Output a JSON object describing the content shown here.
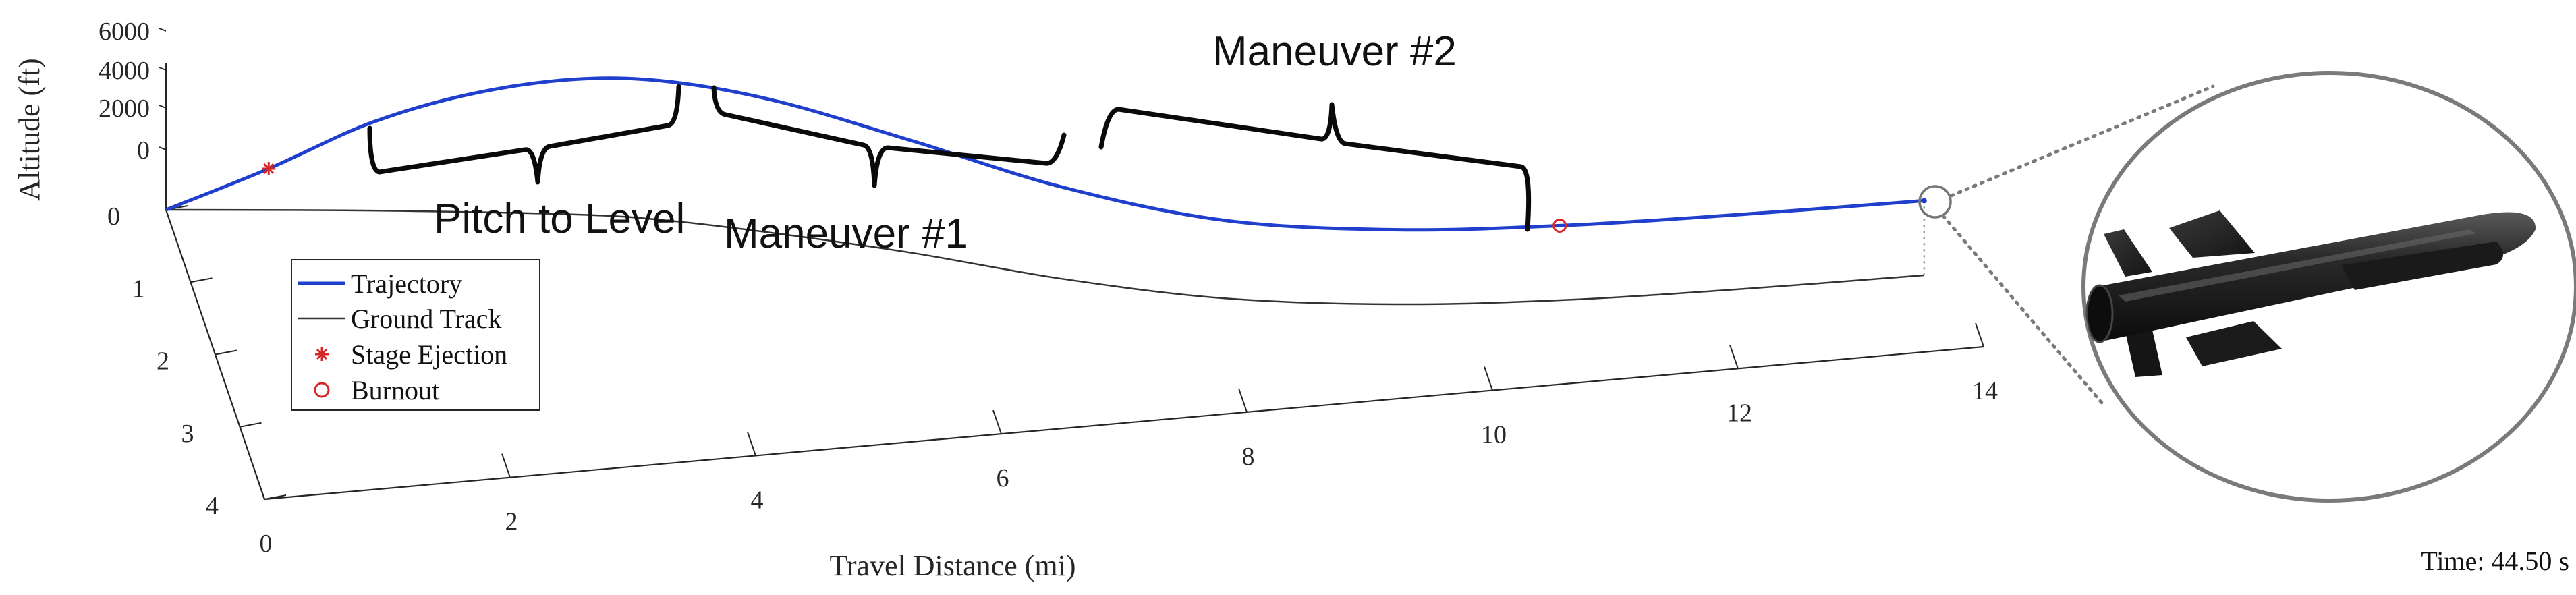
{
  "chart_data": {
    "type": "line",
    "dimension": "3d",
    "xlabel": "Travel Distance (mi)",
    "ylabel": "",
    "zlabel": "Altitude (ft)",
    "xlim": [
      0,
      14
    ],
    "ylim": [
      0,
      4
    ],
    "zlim": [
      0,
      6000
    ],
    "xticks": [
      "0",
      "2",
      "4",
      "6",
      "8",
      "10",
      "12",
      "14"
    ],
    "yticks": [
      "0",
      "1",
      "2",
      "3",
      "4"
    ],
    "zticks": [
      "0",
      "2000",
      "4000",
      "6000"
    ],
    "grid": false,
    "legend_position": "inside-left",
    "legend": [
      {
        "label": "Trajectory",
        "marker": "line",
        "color": "#1f3fcc"
      },
      {
        "label": "Ground Track",
        "marker": "line",
        "color": "#333333"
      },
      {
        "label": "Stage Ejection",
        "marker": "asterisk",
        "color": "#d62728"
      },
      {
        "label": "Burnout",
        "marker": "circle",
        "color": "#d62728"
      }
    ],
    "series": [
      {
        "name": "Trajectory",
        "color": "#1f3fcc",
        "points": [
          {
            "x": 0.0,
            "y": 0.0,
            "z": 0
          },
          {
            "x": 0.8,
            "y": 0.0,
            "z": 1200
          },
          {
            "x": 1.6,
            "y": 0.05,
            "z": 2600
          },
          {
            "x": 2.4,
            "y": 0.1,
            "z": 3500
          },
          {
            "x": 3.2,
            "y": 0.2,
            "z": 4000
          },
          {
            "x": 3.9,
            "y": 0.4,
            "z": 4100
          },
          {
            "x": 4.7,
            "y": 0.8,
            "z": 3900
          },
          {
            "x": 5.7,
            "y": 1.4,
            "z": 3300
          },
          {
            "x": 6.8,
            "y": 2.2,
            "z": 2700
          },
          {
            "x": 8.0,
            "y": 2.8,
            "z": 2300
          },
          {
            "x": 9.3,
            "y": 3.0,
            "z": 2200
          },
          {
            "x": 10.6,
            "y": 2.9,
            "z": 2200
          },
          {
            "x": 12.0,
            "y": 2.6,
            "z": 2200
          },
          {
            "x": 13.5,
            "y": 2.2,
            "z": 2200
          }
        ]
      },
      {
        "name": "Ground Track",
        "color": "#333333",
        "points": [
          {
            "x": 0.0,
            "y": 0.0,
            "z": 0
          },
          {
            "x": 1.6,
            "y": 0.05,
            "z": 0
          },
          {
            "x": 3.2,
            "y": 0.2,
            "z": 0
          },
          {
            "x": 3.9,
            "y": 0.4,
            "z": 0
          },
          {
            "x": 4.7,
            "y": 0.8,
            "z": 0
          },
          {
            "x": 5.7,
            "y": 1.4,
            "z": 0
          },
          {
            "x": 6.8,
            "y": 2.2,
            "z": 0
          },
          {
            "x": 8.0,
            "y": 2.8,
            "z": 0
          },
          {
            "x": 9.3,
            "y": 3.0,
            "z": 0
          },
          {
            "x": 10.6,
            "y": 2.9,
            "z": 0
          },
          {
            "x": 12.0,
            "y": 2.6,
            "z": 0
          },
          {
            "x": 13.5,
            "y": 2.2,
            "z": 0
          }
        ]
      }
    ],
    "events": [
      {
        "name": "Stage Ejection",
        "marker": "asterisk",
        "x": 0.8,
        "y": 0.0,
        "z": 1200
      },
      {
        "name": "Burnout",
        "marker": "circle",
        "x": 10.6,
        "y": 2.9,
        "z": 2200
      }
    ],
    "annotations": [
      {
        "text": "Pitch to Level"
      },
      {
        "text": "Maneuver #1"
      },
      {
        "text": "Maneuver #2"
      }
    ],
    "time_label": "Time: 44.50 s",
    "inset": {
      "description": "missile",
      "color": "#222222"
    }
  }
}
